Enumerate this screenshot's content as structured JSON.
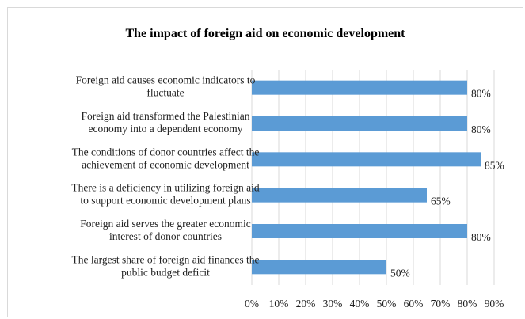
{
  "chart_data": {
    "type": "bar",
    "orientation": "horizontal",
    "title": "The impact of foreign aid on economic development",
    "categories": [
      [
        "Foreign aid causes economic indicators to",
        "fluctuate"
      ],
      [
        "Foreign aid transformed the Palestinian",
        "economy into a dependent economy"
      ],
      [
        "The conditions of donor countries affect the",
        "achievement of economic development"
      ],
      [
        "There is a deficiency in utilizing foreign aid",
        "to support economic development plans"
      ],
      [
        "Foreign aid serves the greater economic",
        "interest of donor countries"
      ],
      [
        "The largest share of foreign aid finances the",
        "public budget deficit"
      ]
    ],
    "values": [
      80,
      80,
      85,
      65,
      80,
      50
    ],
    "data_labels": [
      "80%",
      "80%",
      "85%",
      "65%",
      "80%",
      "50%"
    ],
    "xlim": [
      0,
      90
    ],
    "x_ticks": [
      "0%",
      "10%",
      "20%",
      "30%",
      "40%",
      "50%",
      "60%",
      "70%",
      "80%",
      "90%"
    ],
    "grid": true,
    "bar_color": "#5b9bd5",
    "grid_color": "#d9d9d9"
  }
}
